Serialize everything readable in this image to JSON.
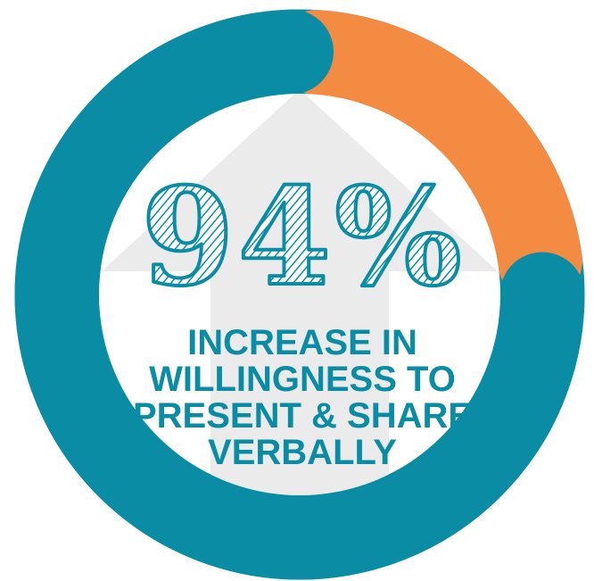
{
  "stat": {
    "value_text": "94%",
    "value": 94
  },
  "caption": {
    "lines": [
      "INCREASE IN",
      "WILLINGNESS TO",
      "PRESENT & SHARE",
      "VERBALLY"
    ]
  },
  "colors": {
    "ring_main": "#0a8ca4",
    "ring_accent": "#f38b42",
    "arrow": "#ebebeb",
    "text": "#0a8ca4"
  },
  "icons": {
    "background": "up-arrow-icon"
  }
}
